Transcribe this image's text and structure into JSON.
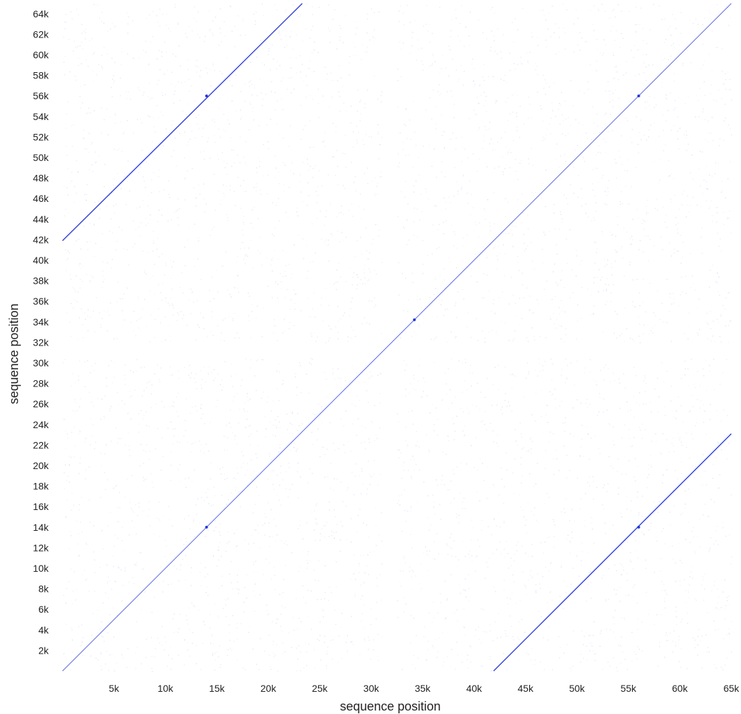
{
  "chart_data": {
    "type": "scatter",
    "subtype": "dot-plot",
    "title": "",
    "xlabel": "sequence position",
    "ylabel": "sequence position",
    "xlim": [
      0,
      65000
    ],
    "ylim": [
      0,
      65000
    ],
    "x_ticks": [
      5000,
      10000,
      15000,
      20000,
      25000,
      30000,
      35000,
      40000,
      45000,
      50000,
      55000,
      60000,
      65000
    ],
    "x_tick_labels": [
      "5k",
      "10k",
      "15k",
      "20k",
      "25k",
      "30k",
      "35k",
      "40k",
      "45k",
      "50k",
      "55k",
      "60k",
      "65k"
    ],
    "y_ticks": [
      2000,
      4000,
      6000,
      8000,
      10000,
      12000,
      14000,
      16000,
      18000,
      20000,
      22000,
      24000,
      26000,
      28000,
      30000,
      32000,
      34000,
      36000,
      38000,
      40000,
      42000,
      44000,
      46000,
      48000,
      50000,
      52000,
      54000,
      56000,
      58000,
      60000,
      62000,
      64000
    ],
    "y_tick_labels": [
      "2k",
      "4k",
      "6k",
      "8k",
      "10k",
      "12k",
      "14k",
      "16k",
      "18k",
      "20k",
      "22k",
      "24k",
      "26k",
      "28k",
      "30k",
      "32k",
      "34k",
      "36k",
      "38k",
      "40k",
      "42k",
      "44k",
      "46k",
      "48k",
      "50k",
      "52k",
      "54k",
      "56k",
      "58k",
      "60k",
      "62k",
      "64k"
    ],
    "grid": false,
    "legend": "none",
    "colors": {
      "diagonal": "#2233dd",
      "background_dots": "#c8ccf0"
    },
    "series": [
      {
        "segments": [
          {
            "x": [
              0,
              65000
            ],
            "y": [
              0,
              65000
            ]
          },
          {
            "x": [
              0,
              23300
            ],
            "y": [
              41900,
              65000
            ]
          },
          {
            "x": [
              41900,
              65000
            ],
            "y": [
              0,
              23100
            ]
          }
        ]
      }
    ],
    "highlight_points": [
      {
        "x": 14000,
        "y": 56000
      },
      {
        "x": 56000,
        "y": 56000
      },
      {
        "x": 14000,
        "y": 14000
      },
      {
        "x": 56000,
        "y": 14000
      },
      {
        "x": 34200,
        "y": 34200
      }
    ],
    "background_bands": {
      "x_gaps": [
        [
          31000,
          32500
        ]
      ],
      "y_gaps": [
        [
          30500,
          32000
        ]
      ]
    }
  }
}
